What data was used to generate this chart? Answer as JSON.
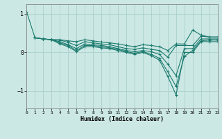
{
  "xlabel": "Humidex (Indice chaleur)",
  "background_color": "#cce8e4",
  "grid_color": "#aacfcb",
  "line_color": "#1a7a6e",
  "xlim": [
    0,
    23
  ],
  "ylim": [
    -1.45,
    1.25
  ],
  "yticks": [
    -1,
    0,
    1
  ],
  "xticks": [
    0,
    1,
    2,
    3,
    4,
    5,
    6,
    7,
    8,
    9,
    10,
    11,
    12,
    13,
    14,
    15,
    16,
    17,
    18,
    19,
    20,
    21,
    22,
    23
  ],
  "lines": [
    {
      "x": [
        0,
        1,
        2,
        3,
        4,
        5,
        6,
        7,
        8,
        9,
        10,
        11,
        12,
        13,
        14,
        15,
        16,
        17,
        18,
        19,
        20,
        21,
        22,
        23
      ],
      "y": [
        1.05,
        0.38,
        0.35,
        0.33,
        0.33,
        0.3,
        0.28,
        0.33,
        0.3,
        0.27,
        0.25,
        0.22,
        0.18,
        0.15,
        0.2,
        0.18,
        0.15,
        0.05,
        0.22,
        0.22,
        0.58,
        0.45,
        0.4,
        0.4
      ]
    },
    {
      "x": [
        1,
        2,
        3,
        4,
        5,
        6,
        7,
        8,
        9,
        10,
        11,
        12,
        13,
        14,
        15,
        16,
        17,
        18,
        19,
        20,
        21,
        22,
        23
      ],
      "y": [
        0.38,
        0.35,
        0.33,
        0.32,
        0.26,
        0.18,
        0.28,
        0.25,
        0.22,
        0.2,
        0.15,
        0.1,
        0.08,
        0.12,
        0.08,
        0.05,
        -0.12,
        0.18,
        0.18,
        0.18,
        0.42,
        0.4,
        0.4
      ]
    },
    {
      "x": [
        1,
        2,
        3,
        4,
        5,
        6,
        7,
        8,
        9,
        10,
        11,
        12,
        13,
        14,
        15,
        16,
        17,
        18,
        19,
        20,
        21,
        22,
        23
      ],
      "y": [
        0.38,
        0.35,
        0.33,
        0.28,
        0.2,
        0.1,
        0.22,
        0.2,
        0.18,
        0.15,
        0.1,
        0.05,
        0.02,
        0.05,
        0.02,
        -0.05,
        -0.3,
        -0.6,
        0.1,
        0.1,
        0.35,
        0.35,
        0.35
      ]
    },
    {
      "x": [
        1,
        2,
        3,
        4,
        5,
        6,
        7,
        8,
        9,
        10,
        11,
        12,
        13,
        14,
        15,
        16,
        17,
        18,
        19,
        20,
        21,
        22,
        23
      ],
      "y": [
        0.38,
        0.35,
        0.33,
        0.25,
        0.18,
        0.05,
        0.18,
        0.18,
        0.15,
        0.12,
        0.08,
        0.02,
        -0.02,
        0.02,
        -0.05,
        -0.15,
        -0.5,
        -0.88,
        -0.1,
        0.05,
        0.3,
        0.32,
        0.32
      ]
    },
    {
      "x": [
        1,
        2,
        3,
        4,
        5,
        6,
        7,
        8,
        9,
        10,
        11,
        12,
        13,
        14,
        15,
        16,
        17,
        18,
        19,
        20,
        21,
        22,
        23
      ],
      "y": [
        0.38,
        0.35,
        0.33,
        0.22,
        0.15,
        0.02,
        0.15,
        0.15,
        0.12,
        0.1,
        0.05,
        0.0,
        -0.05,
        0.0,
        -0.08,
        -0.2,
        -0.62,
        -1.1,
        0.0,
        0.0,
        0.28,
        0.28,
        0.28
      ]
    }
  ]
}
